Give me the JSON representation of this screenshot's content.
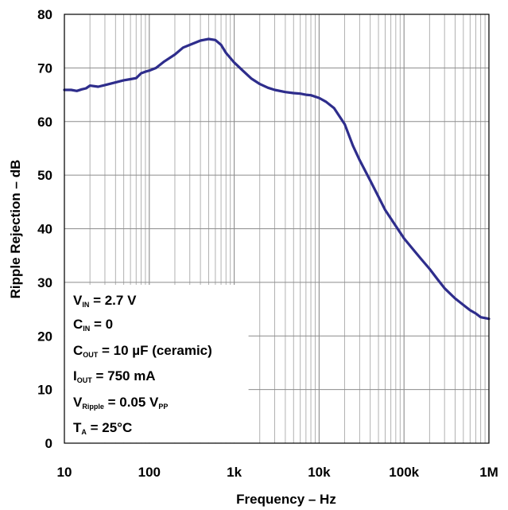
{
  "chart_data": {
    "type": "line",
    "xlabel": "Frequency – Hz",
    "ylabel": "Ripple Rejection – dB",
    "x_scale": "log",
    "xlim": [
      10,
      1000000
    ],
    "ylim": [
      0,
      80
    ],
    "grid": true,
    "x_ticks": [
      "10",
      "100",
      "1k",
      "10k",
      "100k",
      "1M"
    ],
    "y_ticks": [
      "0",
      "10",
      "20",
      "30",
      "40",
      "50",
      "60",
      "70",
      "80"
    ],
    "line_color": "#2e2d8c",
    "conditions": [
      {
        "main": "V",
        "sub": "IN",
        "rest": " = 2.7 V"
      },
      {
        "main": "C",
        "sub": "IN",
        "rest": " = 0"
      },
      {
        "main": "C",
        "sub": "OUT",
        "rest": " = 10 µF (ceramic)"
      },
      {
        "main": "I",
        "sub": "OUT",
        "rest": " = 750 mA"
      },
      {
        "main": "V",
        "sub": "Ripple",
        "rest": " = 0.05 V",
        "sub2": "PP"
      },
      {
        "main": "T",
        "sub": "A",
        "rest": " = 25°C"
      }
    ],
    "series": [
      {
        "x": [
          10,
          12,
          14,
          16,
          18,
          20,
          25,
          30,
          40,
          50,
          60,
          70,
          80,
          90,
          100,
          120,
          150,
          200,
          250,
          300,
          400,
          500,
          600,
          700,
          800,
          1000,
          1300,
          1600,
          2000,
          2500,
          3000,
          4000,
          5000,
          6000,
          7000,
          8000,
          10000,
          12000,
          15000,
          20000,
          25000,
          30000,
          40000,
          50000,
          60000,
          80000,
          100000,
          130000,
          160000,
          200000,
          250000,
          300000,
          400000,
          500000,
          600000,
          700000,
          800000,
          1000000
        ],
        "y": [
          65.9,
          65.9,
          65.7,
          66.0,
          66.2,
          66.7,
          66.5,
          66.8,
          67.3,
          67.7,
          67.9,
          68.1,
          69.0,
          69.3,
          69.5,
          70.0,
          71.2,
          72.5,
          73.8,
          74.3,
          75.1,
          75.4,
          75.2,
          74.3,
          72.8,
          71.0,
          69.3,
          68.0,
          67.0,
          66.3,
          65.9,
          65.5,
          65.3,
          65.2,
          65.0,
          64.9,
          64.4,
          63.7,
          62.5,
          59.5,
          55.5,
          52.8,
          49.0,
          46.0,
          43.5,
          40.5,
          38.2,
          36.0,
          34.3,
          32.5,
          30.5,
          28.9,
          27.0,
          25.8,
          24.8,
          24.2,
          23.5,
          23.2
        ]
      }
    ]
  }
}
